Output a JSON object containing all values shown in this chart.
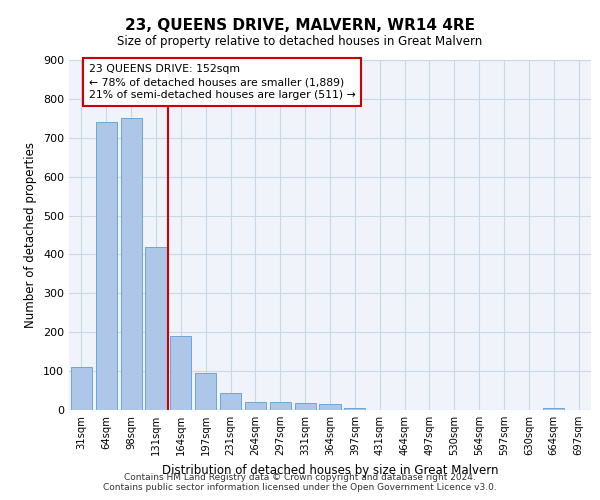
{
  "title": "23, QUEENS DRIVE, MALVERN, WR14 4RE",
  "subtitle": "Size of property relative to detached houses in Great Malvern",
  "xlabel": "Distribution of detached houses by size in Great Malvern",
  "ylabel": "Number of detached properties",
  "bar_labels": [
    "31sqm",
    "64sqm",
    "98sqm",
    "131sqm",
    "164sqm",
    "197sqm",
    "231sqm",
    "264sqm",
    "297sqm",
    "331sqm",
    "364sqm",
    "397sqm",
    "431sqm",
    "464sqm",
    "497sqm",
    "530sqm",
    "564sqm",
    "597sqm",
    "630sqm",
    "664sqm",
    "697sqm"
  ],
  "bar_heights": [
    110,
    740,
    750,
    420,
    190,
    95,
    45,
    20,
    20,
    18,
    15,
    5,
    0,
    0,
    0,
    0,
    0,
    0,
    0,
    5,
    0
  ],
  "bar_color": "#aec6e8",
  "bar_edge_color": "#5a9fd4",
  "vline_x": 3.5,
  "vline_color": "#cc0000",
  "annotation_title": "23 QUEENS DRIVE: 152sqm",
  "annotation_line1": "← 78% of detached houses are smaller (1,889)",
  "annotation_line2": "21% of semi-detached houses are larger (511) →",
  "annotation_box_color": "#cc0000",
  "ylim": [
    0,
    900
  ],
  "yticks": [
    0,
    100,
    200,
    300,
    400,
    500,
    600,
    700,
    800,
    900
  ],
  "grid_color": "#c8d8e8",
  "bg_color": "#f0f4fa",
  "footer_line1": "Contains HM Land Registry data © Crown copyright and database right 2024.",
  "footer_line2": "Contains public sector information licensed under the Open Government Licence v3.0."
}
